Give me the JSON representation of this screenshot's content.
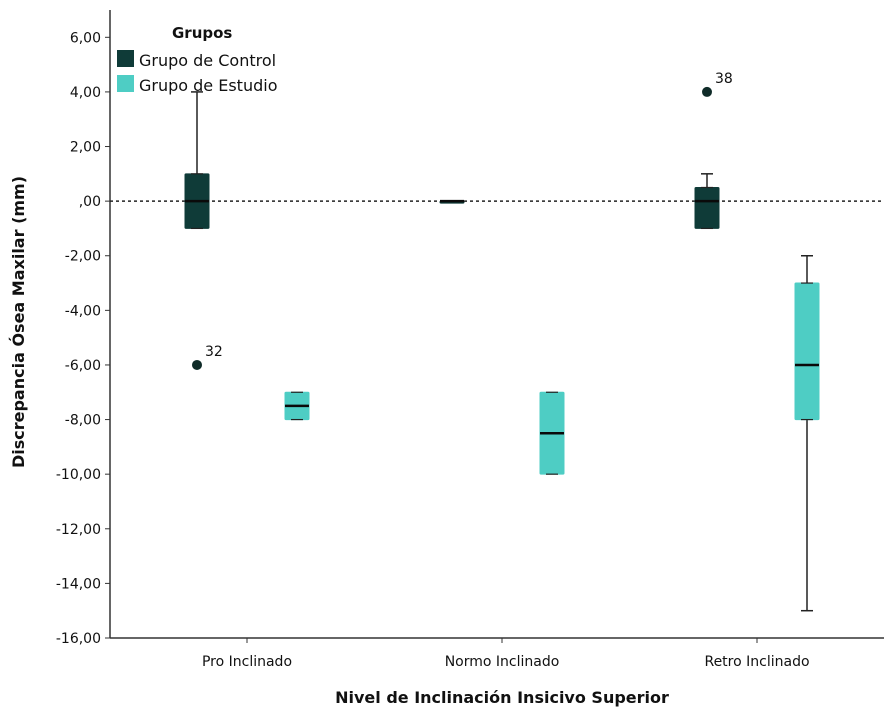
{
  "chart_data": {
    "type": "boxplot",
    "xlabel": "Nivel de Inclinación Insicivo Superior",
    "ylabel": "Discrepancia Ósea Maxilar (mm)",
    "ylim": [
      -16,
      7
    ],
    "yticks": [
      6,
      4,
      2,
      0,
      -2,
      -4,
      -6,
      -8,
      -10,
      -12,
      -14,
      -16
    ],
    "ytick_labels": [
      "6,00",
      "4,00",
      "2,00",
      ",00",
      "-2,00",
      "-4,00",
      "-6,00",
      "-8,00",
      "-10,00",
      "-12,00",
      "-14,00",
      "-16,00"
    ],
    "categories": [
      "Pro Inclinado",
      "Normo Inclinado",
      "Retro Inclinado"
    ],
    "reference_line": 0,
    "legend": {
      "title": "Grupos",
      "placement": "top-left"
    },
    "series": [
      {
        "name": "Grupo de Control",
        "color": "#0f3b38",
        "boxes": [
          {
            "whisker_low": -1,
            "q1": -1,
            "median": 0,
            "q3": 1,
            "whisker_high": 4,
            "outliers": [
              {
                "value": -6,
                "label": "32"
              }
            ]
          },
          {
            "whisker_low": 0,
            "q1": 0,
            "median": 0,
            "q3": 0,
            "whisker_high": 0,
            "outliers": []
          },
          {
            "whisker_low": -1,
            "q1": -1,
            "median": 0,
            "q3": 0.5,
            "whisker_high": 1,
            "outliers": [
              {
                "value": 4,
                "label": "38"
              }
            ]
          }
        ]
      },
      {
        "name": "Grupo de Estudio",
        "color": "#4ecdc4",
        "boxes": [
          {
            "whisker_low": -8,
            "q1": -8,
            "median": -7.5,
            "q3": -7,
            "whisker_high": -7,
            "outliers": []
          },
          {
            "whisker_low": -10,
            "q1": -10,
            "median": -8.5,
            "q3": -7,
            "whisker_high": -7,
            "outliers": []
          },
          {
            "whisker_low": -15,
            "q1": -8,
            "median": -6,
            "q3": -3,
            "whisker_high": -2,
            "outliers": []
          }
        ]
      }
    ]
  }
}
